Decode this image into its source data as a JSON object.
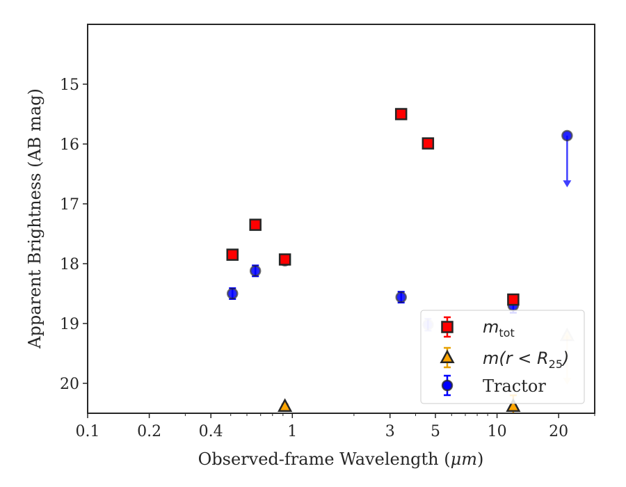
{
  "chart_data": {
    "type": "scatter",
    "xlabel": "Observed-frame Wavelength (",
    "xlabel_unit": "μm",
    "xlabel_close": ")",
    "ylabel": "Apparent Brightness (AB mag)",
    "xscale": "log",
    "xlim": [
      0.1,
      30
    ],
    "ylim": [
      20.5,
      14.0
    ],
    "y_inverted": true,
    "x_ticks": [
      {
        "value": 0.1,
        "label": "0.1"
      },
      {
        "value": 0.2,
        "label": "0.2"
      },
      {
        "value": 0.4,
        "label": "0.4"
      },
      {
        "value": 1,
        "label": "1"
      },
      {
        "value": 3,
        "label": "3"
      },
      {
        "value": 5,
        "label": "5"
      },
      {
        "value": 10,
        "label": "10"
      },
      {
        "value": 20,
        "label": "20"
      }
    ],
    "y_ticks": [
      {
        "value": 15,
        "label": "15"
      },
      {
        "value": 16,
        "label": "16"
      },
      {
        "value": 17,
        "label": "17"
      },
      {
        "value": 18,
        "label": "18"
      },
      {
        "value": 19,
        "label": "19"
      },
      {
        "value": 20,
        "label": "20"
      }
    ],
    "legend_position": "lower-right",
    "series": [
      {
        "key": "mtot",
        "name_base": "m",
        "name_sub": "tot",
        "marker": "square",
        "color": "#ff0000",
        "edge": "#262626",
        "points": [
          {
            "x": 0.51,
            "y": 17.85,
            "err": 0.06
          },
          {
            "x": 0.66,
            "y": 17.35,
            "err": 0.05
          },
          {
            "x": 0.92,
            "y": 17.93,
            "err": 0.06
          },
          {
            "x": 3.4,
            "y": 15.5,
            "err": 0.03
          },
          {
            "x": 4.6,
            "y": 15.99,
            "err": 0.03
          },
          {
            "x": 12.0,
            "y": 18.6,
            "err": 0.08
          }
        ]
      },
      {
        "key": "mr25",
        "name_base": "m(r < R",
        "name_sub": "25",
        "name_close": ")",
        "marker": "triangle",
        "color": "#ffa500",
        "edge": "#262626",
        "points": [
          {
            "x": 0.92,
            "y": 20.4,
            "err": 0.05
          },
          {
            "x": 12.0,
            "y": 20.6,
            "err": 0.4
          },
          {
            "x": 22.0,
            "y": 19.2,
            "upper_limit": true,
            "arrow_to": 20.0,
            "faded": true
          }
        ]
      },
      {
        "key": "tractor",
        "name": "Tractor",
        "marker": "circle",
        "color": "#0000ff",
        "edge": "#262626",
        "points": [
          {
            "x": 0.51,
            "y": 18.5,
            "err": 0.09
          },
          {
            "x": 0.66,
            "y": 18.12,
            "err": 0.09
          },
          {
            "x": 0.92,
            "y": 17.95,
            "err": 0.06
          },
          {
            "x": 3.4,
            "y": 18.56,
            "err": 0.09
          },
          {
            "x": 4.6,
            "y": 19.02,
            "err": 0.1,
            "faded": true
          },
          {
            "x": 12.0,
            "y": 18.7,
            "err": 0.12
          },
          {
            "x": 22.0,
            "y": 15.86,
            "upper_limit": true,
            "arrow_to": 16.7
          }
        ]
      }
    ]
  }
}
